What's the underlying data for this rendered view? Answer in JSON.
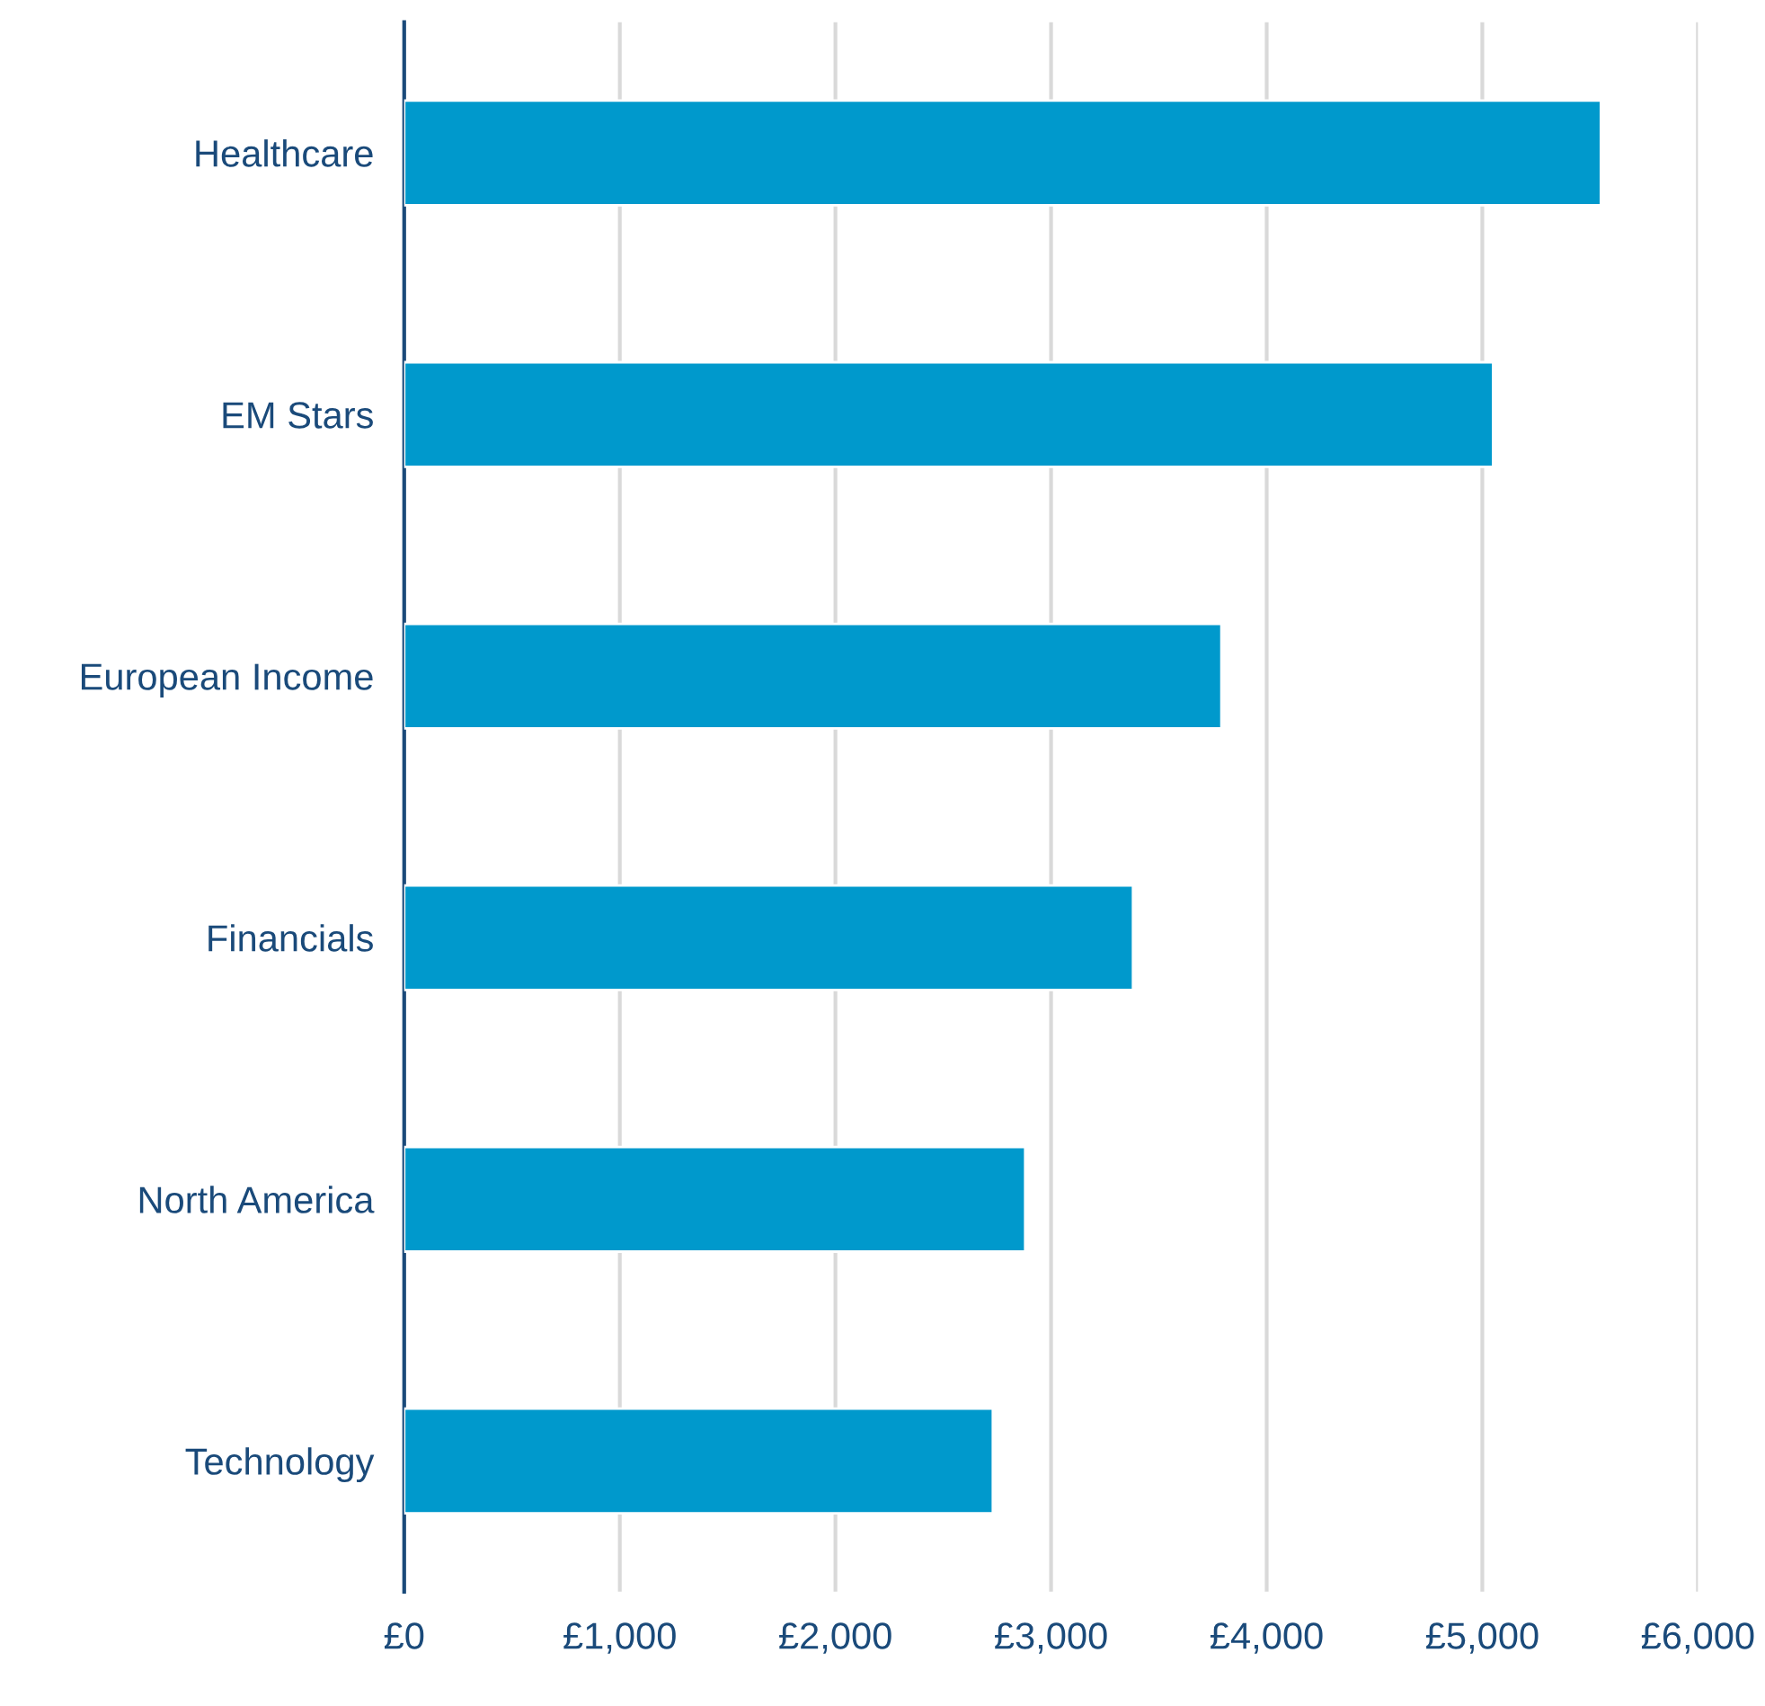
{
  "chart_data": {
    "type": "bar",
    "orientation": "horizontal",
    "categories": [
      "Healthcare",
      "EM Stars",
      "European Income",
      "Financials",
      "North America",
      "Technology"
    ],
    "values": [
      5550,
      5050,
      3790,
      3380,
      2880,
      2730
    ],
    "color": "#0099cc",
    "xlim": [
      0,
      6000
    ],
    "xticks": [
      {
        "value": 0,
        "label": "£0"
      },
      {
        "value": 1000,
        "label": "£1,000"
      },
      {
        "value": 2000,
        "label": "£2,000"
      },
      {
        "value": 3000,
        "label": "£3,000"
      },
      {
        "value": 4000,
        "label": "£4,000"
      },
      {
        "value": 5000,
        "label": "£5,000"
      },
      {
        "value": 6000,
        "label": "£6,000"
      }
    ],
    "grid": "x",
    "legend": false
  }
}
